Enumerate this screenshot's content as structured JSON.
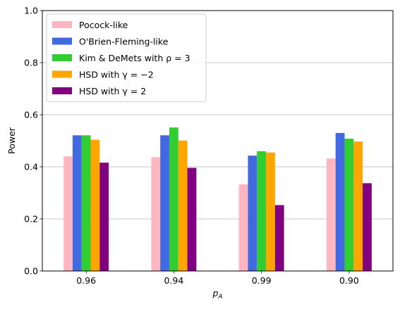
{
  "chart_data": {
    "type": "bar",
    "xlabel": "p",
    "xlabel_sub": "A",
    "ylabel": "Power",
    "ylim": [
      0,
      1.0
    ],
    "yticks": [
      "0.0",
      "0.2",
      "0.4",
      "0.6",
      "0.8",
      "1.0"
    ],
    "grid": "y-axis",
    "legend_placement": "top-left",
    "categories": [
      "0.96",
      "0.94",
      "0.99",
      "0.90"
    ],
    "series": [
      {
        "name": "Pocock-like",
        "color": "#ffb6c1",
        "values": [
          0.44,
          0.437,
          0.333,
          0.432
        ]
      },
      {
        "name": "O'Brien-Fleming-like",
        "color": "#4169e1",
        "values": [
          0.521,
          0.521,
          0.443,
          0.53
        ]
      },
      {
        "name": "Kim & DeMets with ρ = 3",
        "color": "#32cd32",
        "values": [
          0.521,
          0.551,
          0.46,
          0.508
        ]
      },
      {
        "name": "HSD with γ = −2",
        "color": "#ffa500",
        "values": [
          0.504,
          0.501,
          0.455,
          0.497
        ]
      },
      {
        "name": "HSD with γ = 2",
        "color": "#800080",
        "values": [
          0.416,
          0.396,
          0.253,
          0.337
        ]
      }
    ]
  }
}
